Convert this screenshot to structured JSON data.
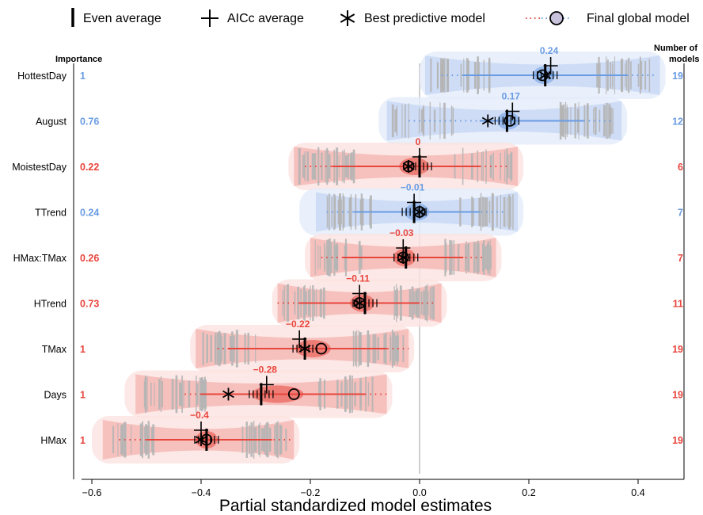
{
  "colors": {
    "positive": "#6a9ce3",
    "negative": "#e8453c",
    "positive_fill": "#c9d8f4",
    "negative_fill": "#f4b9b5",
    "positive_halo": "#e4ecfa",
    "negative_halo": "#fbe2e0",
    "zero_line": "#bfbfbf"
  },
  "legend": {
    "even": "Even average",
    "aicc": "AICc average",
    "best": "Best predictive model",
    "final": "Final global model"
  },
  "headers": {
    "importance": "Importance",
    "num_models_1": "Number of",
    "num_models_2": "models"
  },
  "chart_data": {
    "type": "interval",
    "xlabel": "Partial standardized model estimates",
    "xlim": [
      -0.62,
      0.49
    ],
    "xticks": [
      -0.6,
      -0.4,
      -0.2,
      0.0,
      0.2,
      0.4
    ],
    "xtick_labels": [
      "−0.6",
      "−0.4",
      "−0.2",
      "0.0",
      "0.2",
      "0.4"
    ],
    "rows": [
      {
        "name": "HottestDay",
        "importance": "1",
        "models": "19",
        "sign": "pos",
        "label": "0.24",
        "even": 0.23,
        "aicc": 0.24,
        "best": 0.23,
        "final": 0.225,
        "solid": [
          0.08,
          0.38
        ],
        "dotted": [
          0.04,
          0.43
        ],
        "violin": [
          0.01,
          0.44
        ],
        "halo": [
          0.0,
          0.45
        ]
      },
      {
        "name": "August",
        "importance": "0.76",
        "models": "12",
        "sign": "pos",
        "label": "0.17",
        "even": 0.16,
        "aicc": 0.17,
        "best": 0.125,
        "final": 0.165,
        "solid": [
          0.11,
          0.3
        ],
        "dotted": [
          -0.02,
          0.35
        ],
        "violin": [
          -0.06,
          0.37
        ],
        "halo": [
          -0.075,
          0.38
        ]
      },
      {
        "name": "MoistestDay",
        "importance": "0.22",
        "models": "6",
        "sign": "neg",
        "label": "0",
        "even": 0.0,
        "aicc": 0.0,
        "best": -0.02,
        "final": -0.02,
        "solid": [
          -0.16,
          0.11
        ],
        "dotted": [
          -0.21,
          0.16
        ],
        "violin": [
          -0.23,
          0.18
        ],
        "halo": [
          -0.24,
          0.19
        ]
      },
      {
        "name": "TTrend",
        "importance": "0.24",
        "models": "7",
        "sign": "pos",
        "label": "−0.01",
        "even": -0.01,
        "aicc": -0.01,
        "best": 0.0,
        "final": 0.0,
        "solid": [
          -0.12,
          0.11
        ],
        "dotted": [
          -0.17,
          0.16
        ],
        "violin": [
          -0.19,
          0.18
        ],
        "halo": [
          -0.22,
          0.19
        ]
      },
      {
        "name": "HMax:TMax",
        "importance": "0.26",
        "models": "7",
        "sign": "neg",
        "label": "−0.03",
        "even": -0.025,
        "aicc": -0.03,
        "best": -0.03,
        "final": -0.03,
        "solid": [
          -0.14,
          0.08
        ],
        "dotted": [
          -0.18,
          0.12
        ],
        "violin": [
          -0.2,
          0.14
        ],
        "halo": [
          -0.21,
          0.15
        ]
      },
      {
        "name": "HTrend",
        "importance": "0.73",
        "models": "11",
        "sign": "neg",
        "label": "−0.11",
        "even": -0.1,
        "aicc": -0.11,
        "best": -0.11,
        "final": -0.11,
        "solid": [
          -0.22,
          0.0
        ],
        "dotted": [
          -0.26,
          0.03
        ],
        "violin": [
          -0.26,
          0.04
        ],
        "halo": [
          -0.27,
          0.05
        ]
      },
      {
        "name": "TMax",
        "importance": "1",
        "models": "19",
        "sign": "neg",
        "label": "−0.22",
        "even": -0.21,
        "aicc": -0.22,
        "best": -0.21,
        "final": -0.18,
        "solid": [
          -0.35,
          -0.06
        ],
        "dotted": [
          -0.37,
          -0.02
        ],
        "violin": [
          -0.41,
          -0.02
        ],
        "halo": [
          -0.42,
          -0.01
        ]
      },
      {
        "name": "Days",
        "importance": "1",
        "models": "19",
        "sign": "neg",
        "label": "−0.28",
        "even": -0.29,
        "aicc": -0.28,
        "best": -0.35,
        "final": -0.23,
        "solid": [
          -0.4,
          -0.1
        ],
        "dotted": [
          -0.43,
          -0.06
        ],
        "violin": [
          -0.52,
          -0.06
        ],
        "halo": [
          -0.54,
          -0.05
        ]
      },
      {
        "name": "HMax",
        "importance": "1",
        "models": "19",
        "sign": "neg",
        "label": "−0.4",
        "even": -0.39,
        "aicc": -0.4,
        "best": -0.4,
        "final": -0.39,
        "solid": [
          -0.5,
          -0.27
        ],
        "dotted": [
          -0.55,
          -0.23
        ],
        "violin": [
          -0.58,
          -0.23
        ],
        "halo": [
          -0.6,
          -0.22
        ]
      }
    ]
  }
}
